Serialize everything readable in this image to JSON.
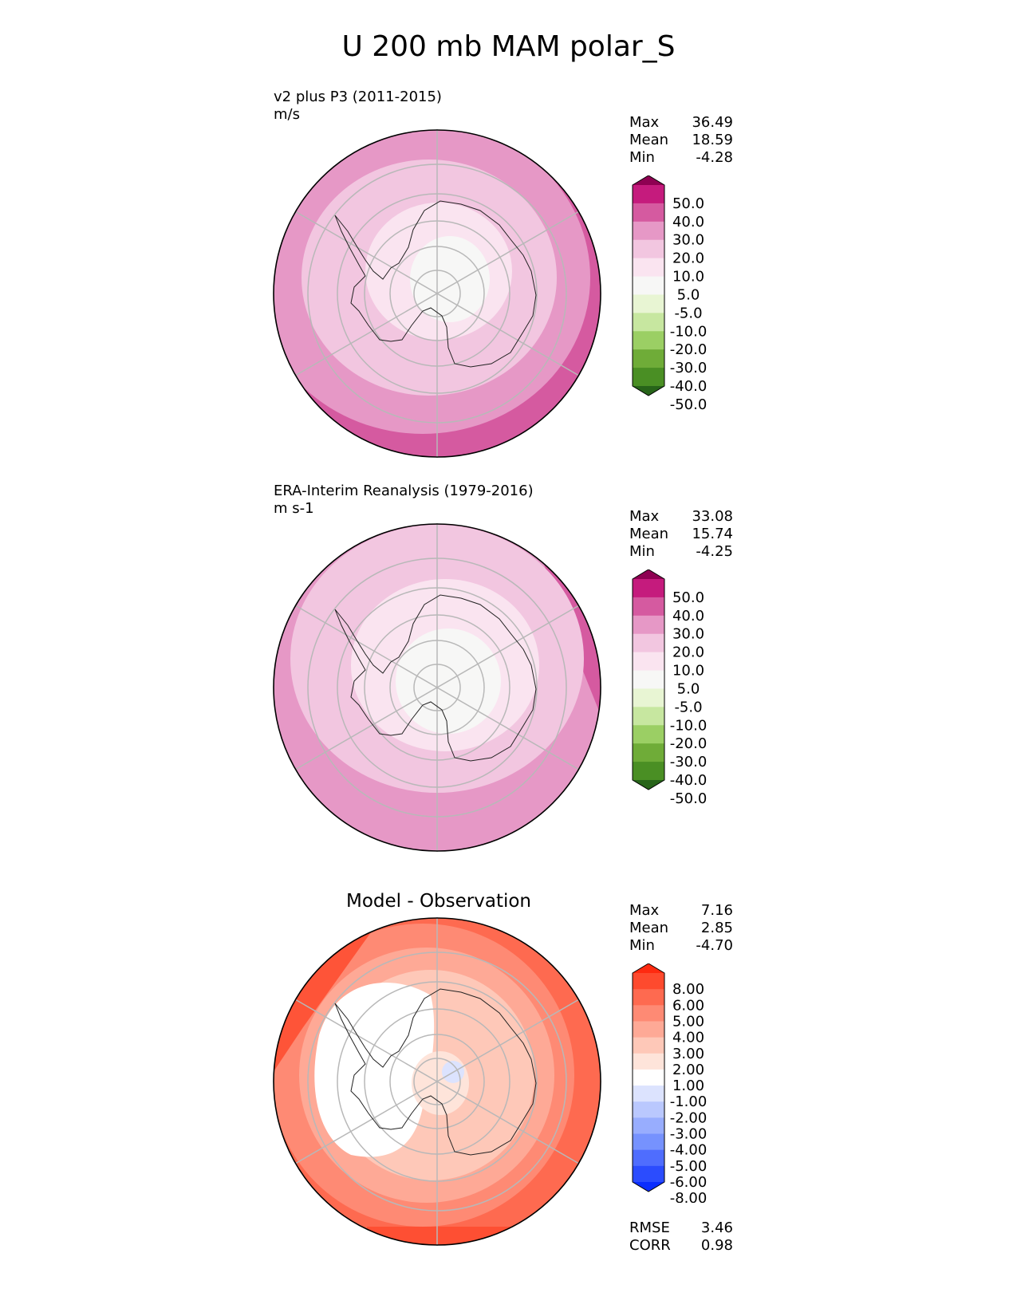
{
  "title": "U 200 mb MAM polar_S",
  "panels": [
    {
      "name": "test",
      "title_line1": "v2 plus P3 (2011-2015)",
      "title_line2": "m/s",
      "stats": [
        {
          "label": "Max",
          "value": "36.49"
        },
        {
          "label": "Mean",
          "value": "18.59"
        },
        {
          "label": "Min",
          "value": "-4.28"
        }
      ]
    },
    {
      "name": "reference",
      "title_line1": "ERA-Interim Reanalysis (1979-2016)",
      "title_line2": "m s-1",
      "stats": [
        {
          "label": "Max",
          "value": "33.08"
        },
        {
          "label": "Mean",
          "value": "15.74"
        },
        {
          "label": "Min",
          "value": "-4.25"
        }
      ]
    },
    {
      "name": "difference",
      "title": "Model - Observation",
      "stats": [
        {
          "label": "Max",
          "value": "7.16"
        },
        {
          "label": "Mean",
          "value": "2.85"
        },
        {
          "label": "Min",
          "value": "-4.70"
        }
      ],
      "metrics": [
        {
          "label": "RMSE",
          "value": "3.46"
        },
        {
          "label": "CORR",
          "value": "0.98"
        }
      ]
    }
  ],
  "colorbars": {
    "field": {
      "tick_labels": [
        "50.0",
        "40.0",
        "30.0",
        "20.0",
        "10.0",
        "5.0",
        "-5.0",
        "-10.0",
        "-20.0",
        "-30.0",
        "-40.0",
        "-50.0"
      ],
      "colors": [
        "#8e0152",
        "#c51b7d",
        "#d55aa0",
        "#e698c6",
        "#f2c6e0",
        "#fae4f0",
        "#f7f7f6",
        "#e8f5d3",
        "#c7e7a0",
        "#9bcf64",
        "#6fac38",
        "#4a8f24",
        "#276419"
      ]
    },
    "diff": {
      "tick_labels": [
        "8.00",
        "6.00",
        "5.00",
        "4.00",
        "3.00",
        "2.00",
        "1.00",
        "-1.00",
        "-2.00",
        "-3.00",
        "-4.00",
        "-5.00",
        "-6.00",
        "-8.00"
      ],
      "colors": [
        "#fe2a10",
        "#fe4a2e",
        "#fe6a50",
        "#fe8a74",
        "#fea996",
        "#fec8b8",
        "#fee4da",
        "#ffffff",
        "#dce3fe",
        "#bac8fe",
        "#98adfe",
        "#7692fe",
        "#4f6dfe",
        "#2b4cfe",
        "#0a2dfe"
      ]
    }
  },
  "chart_data": [
    {
      "type": "heatmap",
      "title": "v2 plus P3 (2011-2015)",
      "units": "m/s",
      "variable": "U 200 mb",
      "season": "MAM",
      "projection": "south polar stereographic",
      "levels": [
        -50,
        -40,
        -30,
        -20,
        -10,
        -5,
        5,
        10,
        20,
        30,
        40,
        50
      ],
      "max": 36.49,
      "mean": 18.59,
      "min": -4.28
    },
    {
      "type": "heatmap",
      "title": "ERA-Interim Reanalysis (1979-2016)",
      "units": "m s-1",
      "variable": "U 200 mb",
      "season": "MAM",
      "projection": "south polar stereographic",
      "levels": [
        -50,
        -40,
        -30,
        -20,
        -10,
        -5,
        5,
        10,
        20,
        30,
        40,
        50
      ],
      "max": 33.08,
      "mean": 15.74,
      "min": -4.25
    },
    {
      "type": "heatmap",
      "title": "Model - Observation",
      "projection": "south polar stereographic",
      "levels": [
        -8,
        -6,
        -5,
        -4,
        -3,
        -2,
        -1,
        1,
        2,
        3,
        4,
        5,
        6,
        8
      ],
      "max": 7.16,
      "mean": 2.85,
      "min": -4.7,
      "rmse": 3.46,
      "corr": 0.98
    }
  ]
}
